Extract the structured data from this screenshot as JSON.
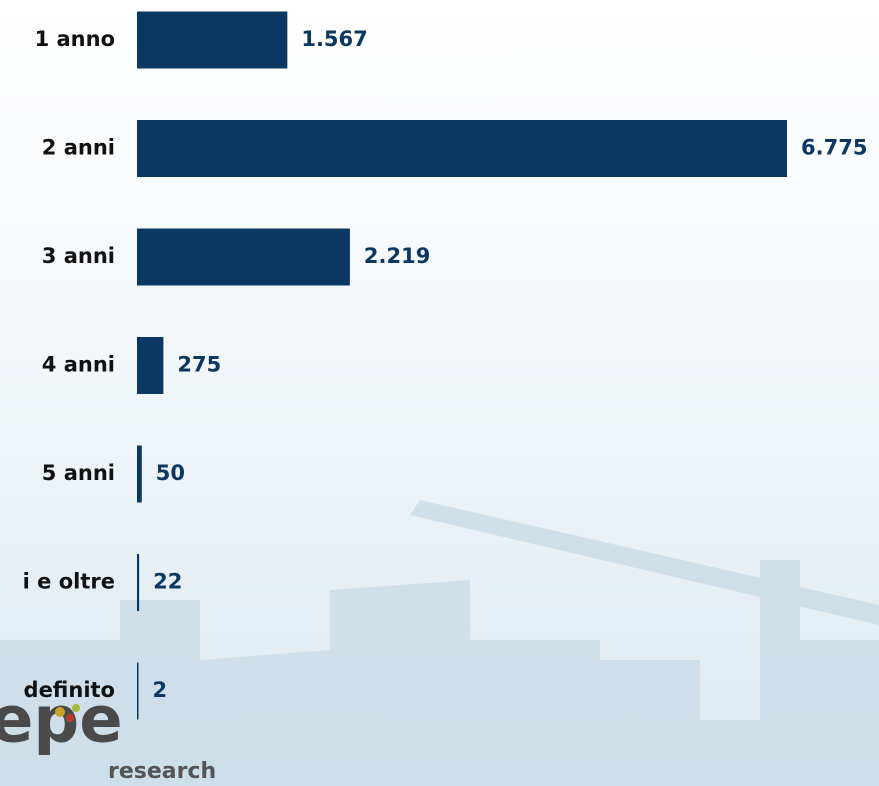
{
  "chart_data": {
    "type": "bar",
    "orientation": "horizontal",
    "categories": [
      "1 anno",
      "2 anni",
      "3 anni",
      "4 anni",
      "5 anni",
      "i e oltre",
      "definito"
    ],
    "values": [
      1567,
      6775,
      2219,
      275,
      50,
      22,
      2
    ],
    "value_labels": [
      "1.567",
      "6.775",
      "2.219",
      "275",
      "50",
      "22",
      "2"
    ],
    "color": "#0b3862"
  },
  "logo": {
    "text": "research"
  }
}
